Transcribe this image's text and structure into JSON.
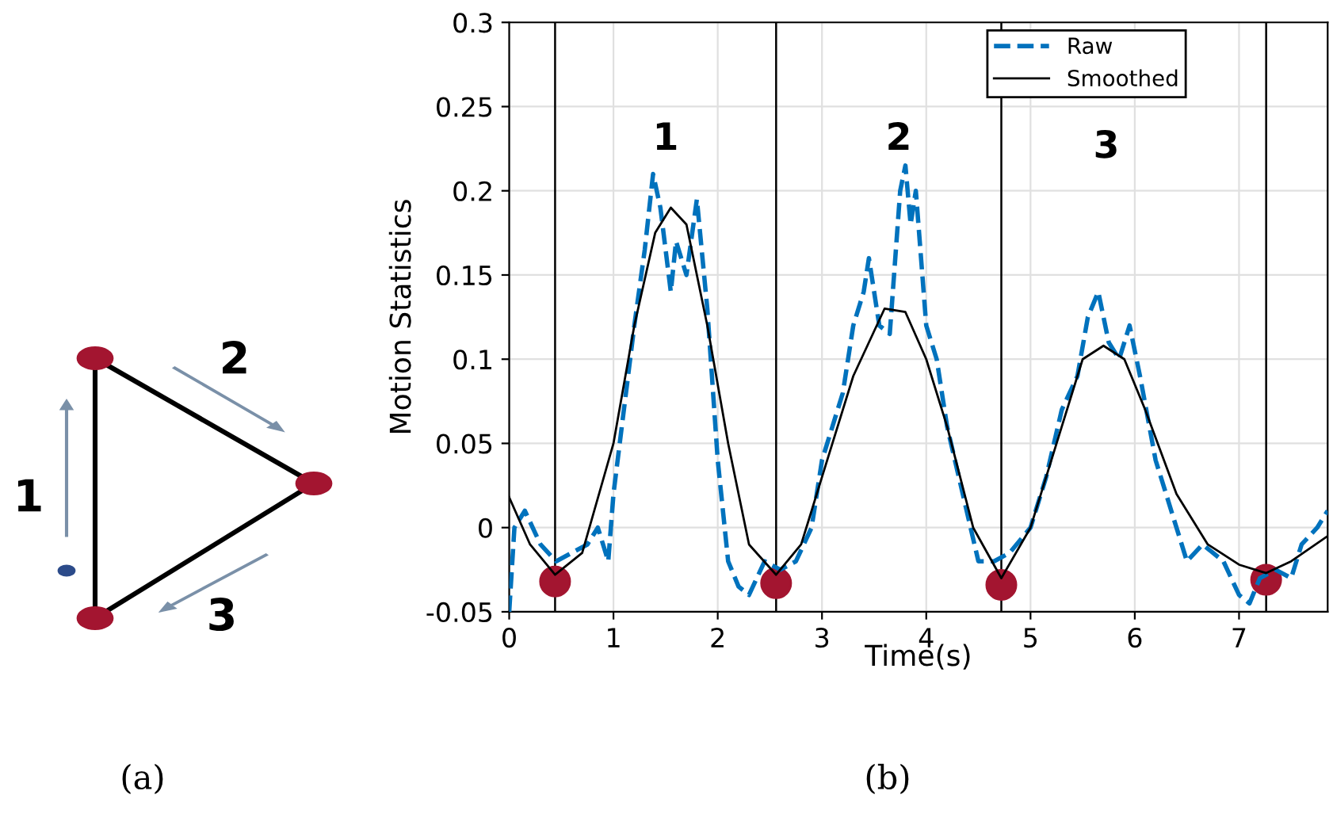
{
  "chart_data": {
    "type": "line",
    "xlabel": "Time(s)",
    "ylabel": "Motion Statistics",
    "xlim": [
      0,
      7.85
    ],
    "xticks": [
      0,
      1,
      2,
      3,
      4,
      5,
      6,
      7
    ],
    "ylim": [
      -0.05,
      0.3
    ],
    "yticks": [
      -0.05,
      0,
      0.05,
      0.1,
      0.15,
      0.2,
      0.25,
      0.3
    ],
    "grid": true,
    "legend": "top right",
    "series": [
      {
        "name": "Raw",
        "color": "#0072bd",
        "line_style": "dashed",
        "x": [
          0,
          0.05,
          0.15,
          0.3,
          0.45,
          0.6,
          0.75,
          0.85,
          0.95,
          1.0,
          1.1,
          1.2,
          1.3,
          1.38,
          1.45,
          1.55,
          1.6,
          1.7,
          1.8,
          1.9,
          2.0,
          2.1,
          2.2,
          2.3,
          2.45,
          2.6,
          2.75,
          2.9,
          3.0,
          3.1,
          3.2,
          3.3,
          3.4,
          3.45,
          3.55,
          3.65,
          3.75,
          3.8,
          3.85,
          3.9,
          4.0,
          4.1,
          4.2,
          4.35,
          4.5,
          4.65,
          4.8,
          5.0,
          5.15,
          5.3,
          5.45,
          5.55,
          5.65,
          5.75,
          5.85,
          5.95,
          6.05,
          6.2,
          6.35,
          6.5,
          6.65,
          6.85,
          7.0,
          7.1,
          7.2,
          7.35,
          7.5,
          7.6,
          7.75,
          7.85
        ],
        "values": [
          -0.05,
          0.0,
          0.01,
          -0.01,
          -0.02,
          -0.015,
          -0.01,
          0.0,
          -0.02,
          0.02,
          0.07,
          0.12,
          0.165,
          0.21,
          0.19,
          0.14,
          0.17,
          0.15,
          0.195,
          0.13,
          0.04,
          -0.02,
          -0.035,
          -0.04,
          -0.02,
          -0.025,
          -0.02,
          0.0,
          0.04,
          0.06,
          0.08,
          0.12,
          0.14,
          0.16,
          0.12,
          0.115,
          0.2,
          0.215,
          0.18,
          0.2,
          0.12,
          0.1,
          0.06,
          0.02,
          -0.02,
          -0.02,
          -0.015,
          0.0,
          0.03,
          0.07,
          0.09,
          0.125,
          0.14,
          0.11,
          0.1,
          0.12,
          0.09,
          0.04,
          0.01,
          -0.02,
          -0.01,
          -0.02,
          -0.04,
          -0.045,
          -0.03,
          -0.025,
          -0.03,
          -0.01,
          0.0,
          0.01
        ]
      },
      {
        "name": "Smoothed",
        "color": "#000000",
        "line_style": "solid",
        "x": [
          0,
          0.2,
          0.44,
          0.7,
          1.0,
          1.2,
          1.4,
          1.55,
          1.7,
          1.9,
          2.1,
          2.3,
          2.56,
          2.8,
          3.0,
          3.3,
          3.6,
          3.8,
          4.0,
          4.2,
          4.45,
          4.72,
          5.0,
          5.3,
          5.5,
          5.7,
          5.9,
          6.1,
          6.4,
          6.7,
          7.0,
          7.26,
          7.5,
          7.85
        ],
        "values": [
          0.018,
          -0.01,
          -0.028,
          -0.015,
          0.05,
          0.12,
          0.175,
          0.19,
          0.18,
          0.12,
          0.05,
          -0.01,
          -0.028,
          -0.01,
          0.03,
          0.09,
          0.13,
          0.128,
          0.1,
          0.06,
          0.0,
          -0.03,
          0.0,
          0.06,
          0.1,
          0.108,
          0.1,
          0.07,
          0.02,
          -0.01,
          -0.022,
          -0.027,
          -0.02,
          -0.005
        ]
      },
      {
        "type": "scatter",
        "color": "#a31530",
        "marker": "circle",
        "x": [
          0.44,
          2.56,
          4.72,
          7.26
        ],
        "values": [
          -0.032,
          -0.033,
          -0.034,
          -0.031
        ]
      }
    ],
    "ref_lines": [
      {
        "axis": "x",
        "value": 0.44,
        "color": "#000000"
      },
      {
        "axis": "x",
        "value": 2.56,
        "color": "#000000"
      },
      {
        "axis": "x",
        "value": 4.72,
        "color": "#000000"
      },
      {
        "axis": "x",
        "value": 7.26,
        "color": "#000000"
      }
    ],
    "annotations": [
      "1",
      "2",
      "3",
      "1",
      "2",
      "3",
      "(a)",
      "(b)"
    ]
  }
}
